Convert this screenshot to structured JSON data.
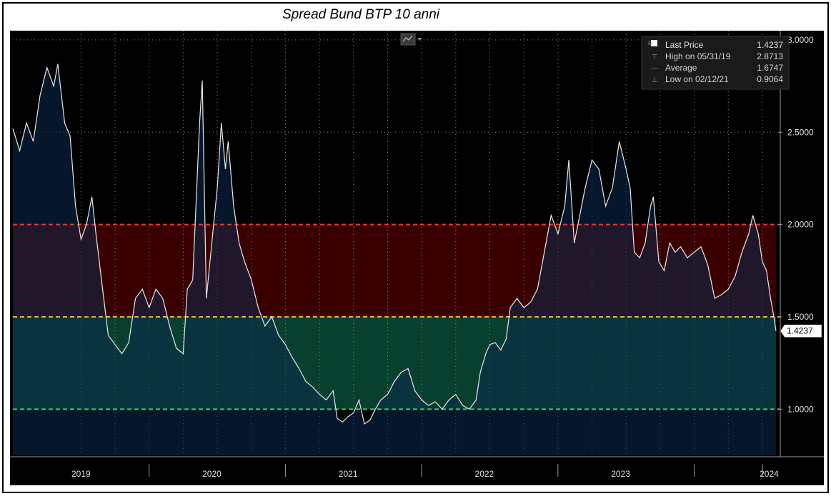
{
  "chart_data": {
    "type": "area",
    "title": "Spread Bund BTP 10 anni",
    "ylim": [
      0.75,
      3.05
    ],
    "yticks": [
      "3.0000",
      "2.5000",
      "2.0000",
      "1.5000",
      "1.0000"
    ],
    "ytick_values": [
      3.0,
      2.5,
      2.0,
      1.5,
      1.0
    ],
    "xticks": [
      "2019",
      "2020",
      "2021",
      "2022",
      "2023",
      "2024"
    ],
    "xtick_values": [
      2019.0,
      2020.0,
      2021.0,
      2022.0,
      2023.0,
      2024.0
    ],
    "xlim": [
      2018.5,
      2024.1
    ],
    "grid": true,
    "legend_placement": "top-right",
    "last_value_label": "1.4237",
    "reference_lines": [
      {
        "value": 2.0,
        "color": "#e23b3b"
      },
      {
        "value": 1.5,
        "color": "#e2b43b"
      },
      {
        "value": 1.0,
        "color": "#3bd44a"
      }
    ],
    "bands": [
      {
        "from": 1.5,
        "to": 2.0,
        "color": "#3a0000"
      },
      {
        "from": 1.0,
        "to": 1.5,
        "color": "#07402e"
      }
    ],
    "series": [
      {
        "color": "#e8e8e8",
        "points": [
          [
            2018.5,
            2.52
          ],
          [
            2018.55,
            2.4
          ],
          [
            2018.6,
            2.55
          ],
          [
            2018.65,
            2.45
          ],
          [
            2018.7,
            2.7
          ],
          [
            2018.75,
            2.85
          ],
          [
            2018.8,
            2.75
          ],
          [
            2018.83,
            2.87
          ],
          [
            2018.88,
            2.55
          ],
          [
            2018.92,
            2.48
          ],
          [
            2018.96,
            2.1
          ],
          [
            2019.0,
            1.92
          ],
          [
            2019.04,
            2.0
          ],
          [
            2019.08,
            2.15
          ],
          [
            2019.11,
            1.95
          ],
          [
            2019.15,
            1.7
          ],
          [
            2019.2,
            1.4
          ],
          [
            2019.25,
            1.35
          ],
          [
            2019.3,
            1.3
          ],
          [
            2019.35,
            1.36
          ],
          [
            2019.4,
            1.6
          ],
          [
            2019.45,
            1.65
          ],
          [
            2019.5,
            1.55
          ],
          [
            2019.55,
            1.65
          ],
          [
            2019.6,
            1.6
          ],
          [
            2019.65,
            1.45
          ],
          [
            2019.7,
            1.33
          ],
          [
            2019.75,
            1.3
          ],
          [
            2019.78,
            1.65
          ],
          [
            2019.82,
            1.7
          ],
          [
            2019.87,
            2.55
          ],
          [
            2019.89,
            2.78
          ],
          [
            2019.92,
            1.6
          ],
          [
            2019.96,
            1.9
          ],
          [
            2020.0,
            2.2
          ],
          [
            2020.03,
            2.55
          ],
          [
            2020.06,
            2.3
          ],
          [
            2020.08,
            2.45
          ],
          [
            2020.12,
            2.1
          ],
          [
            2020.16,
            1.9
          ],
          [
            2020.2,
            1.8
          ],
          [
            2020.25,
            1.7
          ],
          [
            2020.3,
            1.55
          ],
          [
            2020.35,
            1.45
          ],
          [
            2020.4,
            1.5
          ],
          [
            2020.45,
            1.4
          ],
          [
            2020.5,
            1.35
          ],
          [
            2020.55,
            1.28
          ],
          [
            2020.6,
            1.22
          ],
          [
            2020.65,
            1.15
          ],
          [
            2020.7,
            1.12
          ],
          [
            2020.75,
            1.08
          ],
          [
            2020.8,
            1.05
          ],
          [
            2020.85,
            1.1
          ],
          [
            2020.88,
            0.95
          ],
          [
            2020.92,
            0.93
          ],
          [
            2020.96,
            0.96
          ],
          [
            2021.0,
            0.98
          ],
          [
            2021.04,
            1.05
          ],
          [
            2021.08,
            0.92
          ],
          [
            2021.12,
            0.94
          ],
          [
            2021.16,
            1.0
          ],
          [
            2021.2,
            1.05
          ],
          [
            2021.25,
            1.08
          ],
          [
            2021.3,
            1.15
          ],
          [
            2021.35,
            1.2
          ],
          [
            2021.4,
            1.22
          ],
          [
            2021.45,
            1.1
          ],
          [
            2021.5,
            1.05
          ],
          [
            2021.55,
            1.02
          ],
          [
            2021.6,
            1.04
          ],
          [
            2021.65,
            1.0
          ],
          [
            2021.7,
            1.05
          ],
          [
            2021.75,
            1.08
          ],
          [
            2021.8,
            1.02
          ],
          [
            2021.85,
            1.0
          ],
          [
            2021.9,
            1.05
          ],
          [
            2021.93,
            1.2
          ],
          [
            2021.97,
            1.3
          ],
          [
            2022.0,
            1.35
          ],
          [
            2022.04,
            1.36
          ],
          [
            2022.08,
            1.32
          ],
          [
            2022.12,
            1.38
          ],
          [
            2022.15,
            1.55
          ],
          [
            2022.2,
            1.6
          ],
          [
            2022.25,
            1.55
          ],
          [
            2022.3,
            1.58
          ],
          [
            2022.35,
            1.65
          ],
          [
            2022.4,
            1.85
          ],
          [
            2022.45,
            2.05
          ],
          [
            2022.5,
            1.95
          ],
          [
            2022.55,
            2.1
          ],
          [
            2022.58,
            2.35
          ],
          [
            2022.62,
            1.9
          ],
          [
            2022.66,
            2.05
          ],
          [
            2022.7,
            2.2
          ],
          [
            2022.75,
            2.35
          ],
          [
            2022.8,
            2.3
          ],
          [
            2022.85,
            2.1
          ],
          [
            2022.9,
            2.2
          ],
          [
            2022.95,
            2.45
          ],
          [
            2023.0,
            2.3
          ],
          [
            2023.03,
            2.2
          ],
          [
            2023.06,
            1.85
          ],
          [
            2023.1,
            1.82
          ],
          [
            2023.14,
            1.9
          ],
          [
            2023.18,
            2.1
          ],
          [
            2023.2,
            2.15
          ],
          [
            2023.24,
            1.8
          ],
          [
            2023.28,
            1.75
          ],
          [
            2023.32,
            1.9
          ],
          [
            2023.36,
            1.85
          ],
          [
            2023.4,
            1.88
          ],
          [
            2023.45,
            1.82
          ],
          [
            2023.5,
            1.85
          ],
          [
            2023.55,
            1.88
          ],
          [
            2023.6,
            1.78
          ],
          [
            2023.65,
            1.6
          ],
          [
            2023.7,
            1.62
          ],
          [
            2023.75,
            1.65
          ],
          [
            2023.8,
            1.72
          ],
          [
            2023.85,
            1.85
          ],
          [
            2023.9,
            1.95
          ],
          [
            2023.93,
            2.05
          ],
          [
            2023.97,
            1.95
          ],
          [
            2024.0,
            1.8
          ],
          [
            2024.03,
            1.75
          ],
          [
            2024.06,
            1.6
          ],
          [
            2024.08,
            1.52
          ],
          [
            2024.1,
            1.4237
          ]
        ]
      }
    ]
  },
  "legend": {
    "last_price_label": "Last Price",
    "last_price_value": "1.4237",
    "high_label": "High on 05/31/19",
    "high_value": "2.8713",
    "average_label": "Average",
    "average_value": "1.6747",
    "low_label": "Low on 02/12/21",
    "low_value": "0.9064"
  }
}
